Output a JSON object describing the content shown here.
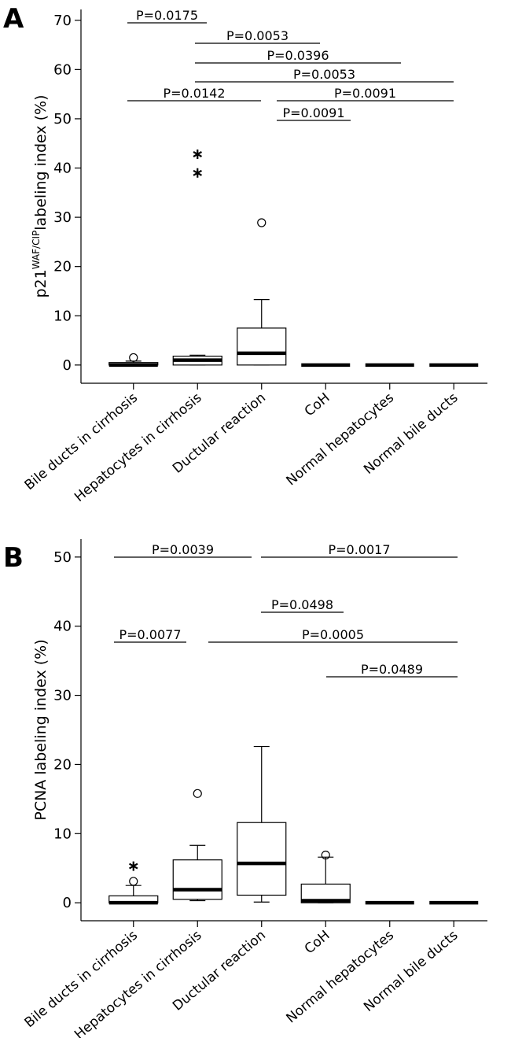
{
  "chart_data": [
    {
      "type": "box",
      "panel": "A",
      "ylabel_main": "p21",
      "ylabel_sup": "WAF/CIP",
      "ylabel_rest": "labeling index (%)",
      "categories": [
        "Bile ducts in cirrhosis",
        "Hepatocytes in cirrhosis",
        "Ductular reaction",
        "CoH",
        "Normal hepatocytes",
        "Normal bile ducts"
      ],
      "boxes": [
        {
          "low": 0,
          "q1": 0,
          "median": 0,
          "q3": 0.5,
          "high": 0.8,
          "outliers": [
            1.5
          ],
          "extremes": []
        },
        {
          "low": 0,
          "q1": 0,
          "median": 1.0,
          "q3": 1.8,
          "high": 2.0,
          "outliers": [],
          "extremes": [
            42.8,
            39.0
          ]
        },
        {
          "low": 0,
          "q1": 0,
          "median": 2.4,
          "q3": 7.5,
          "high": 13.3,
          "outliers": [
            28.9
          ],
          "extremes": []
        },
        {
          "low": 0,
          "q1": 0,
          "median": 0,
          "q3": 0,
          "high": 0,
          "outliers": [],
          "extremes": []
        },
        {
          "low": 0,
          "q1": 0,
          "median": 0,
          "q3": 0,
          "high": 0,
          "outliers": [],
          "extremes": []
        },
        {
          "low": 0,
          "q1": 0,
          "median": 0,
          "q3": 0,
          "high": 0,
          "outliers": [],
          "extremes": []
        }
      ],
      "ylim": [
        -3.7,
        72.2
      ],
      "yticks": [
        0,
        10,
        20,
        30,
        40,
        50,
        60,
        70
      ],
      "annotations": [
        "P=0.0175",
        "P=0.0053",
        "P=0.0396",
        "P=0.0053",
        "P=0.0142",
        "P=0.0091",
        "P=0.0091"
      ]
    },
    {
      "type": "box",
      "panel": "B",
      "ylabel_main": "PCNA labeling index (%)",
      "categories": [
        "Bile ducts in cirrhosis",
        "Hepatocytes in cirrhosis",
        "Ductular reaction",
        "CoH",
        "Normal hepatocytes",
        "Normal bile ducts"
      ],
      "boxes": [
        {
          "low": 0,
          "q1": 0,
          "median": 0,
          "q3": 1.0,
          "high": 2.5,
          "outliers": [
            3.1
          ],
          "extremes": [
            5.3
          ]
        },
        {
          "low": 0.3,
          "q1": 0.5,
          "median": 1.9,
          "q3": 6.2,
          "high": 8.3,
          "outliers": [
            15.8
          ],
          "extremes": []
        },
        {
          "low": 0.1,
          "q1": 1.1,
          "median": 5.7,
          "q3": 11.6,
          "high": 22.6,
          "outliers": [],
          "extremes": []
        },
        {
          "low": 0,
          "q1": 0,
          "median": 0.3,
          "q3": 2.7,
          "high": 6.6,
          "outliers": [
            6.9
          ],
          "extremes": []
        },
        {
          "low": 0,
          "q1": 0,
          "median": 0,
          "q3": 0,
          "high": 0,
          "outliers": [],
          "extremes": []
        },
        {
          "low": 0,
          "q1": 0,
          "median": 0,
          "q3": 0,
          "high": 0,
          "outliers": [],
          "extremes": []
        }
      ],
      "ylim": [
        -2.6,
        52.6
      ],
      "yticks": [
        0,
        10,
        20,
        30,
        40,
        50
      ],
      "annotations": [
        "P=0.0039",
        "P=0.0017",
        "P=0.0498",
        "P=0.0077",
        "P=0.0005",
        "P=0.0489"
      ]
    }
  ]
}
